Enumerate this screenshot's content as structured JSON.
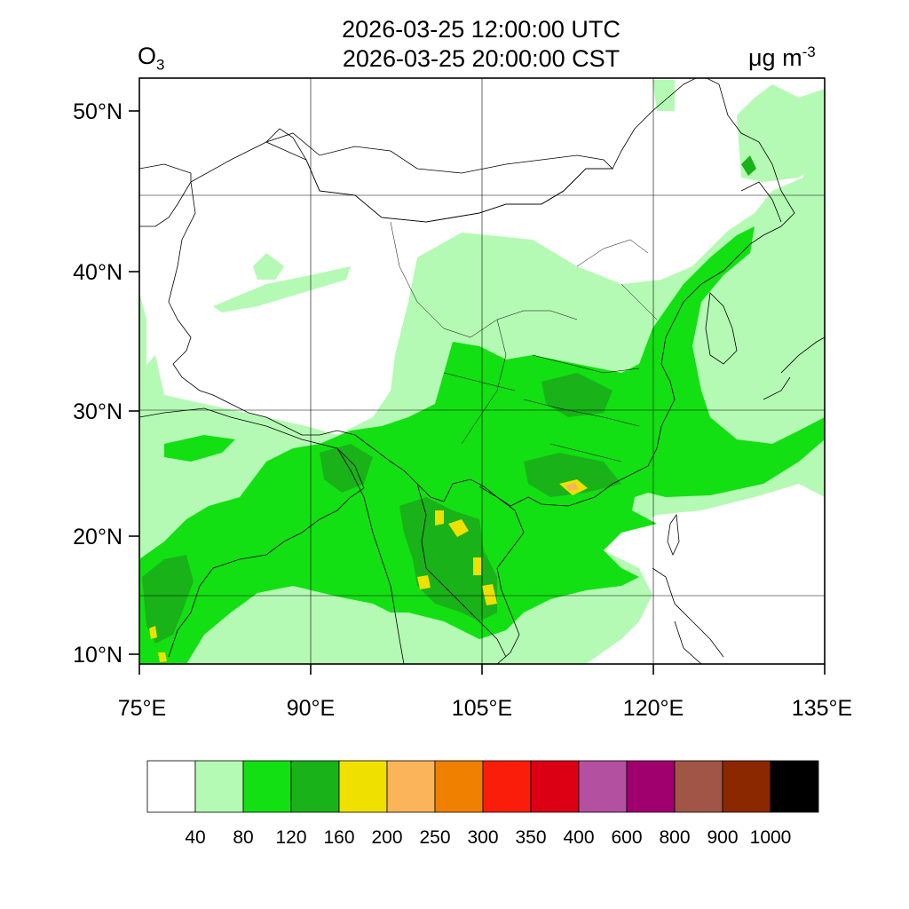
{
  "header": {
    "variable_symbol": "O",
    "variable_subscript": "3",
    "title_utc": "2026-03-25 12:00:00 UTC",
    "title_local": "2026-03-25 20:00:00 CST",
    "unit_base": "μg m",
    "unit_exponent": "-3"
  },
  "map": {
    "projection": "lat-lon",
    "lon_range": [
      75,
      135
    ],
    "lat_range": [
      9,
      52.5
    ],
    "lon_ticks": [
      "75°E",
      "90°E",
      "105°E",
      "120°E",
      "135°E"
    ],
    "lat_ticks": [
      "10°N",
      "20°N",
      "30°N",
      "40°N",
      "50°N"
    ],
    "fill_colors": {
      "level_40_80": "#b4fab4",
      "level_80_120": "#12e012",
      "level_120_160": "#19b219",
      "level_160_200": "#f0e000",
      "level_200_250": "#fbb45a",
      "level_250_300": "#f08000"
    }
  },
  "colorbar": {
    "boxes": [
      "#ffffff",
      "#b4fab4",
      "#12e012",
      "#19b219",
      "#f0e000",
      "#fbb45a",
      "#f08000",
      "#fa1e0a",
      "#dc0014",
      "#b450a0",
      "#a0006e",
      "#a05546",
      "#8c2800",
      "#000000"
    ],
    "labels": [
      "40",
      "80",
      "120",
      "160",
      "200",
      "250",
      "300",
      "350",
      "400",
      "600",
      "800",
      "900",
      "1000"
    ]
  }
}
